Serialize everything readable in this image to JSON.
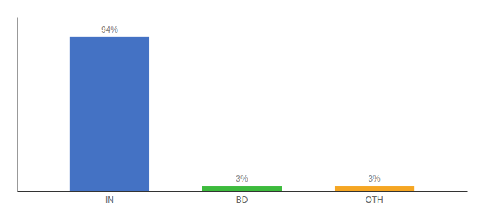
{
  "chart_data": {
    "type": "bar",
    "categories": [
      "IN",
      "BD",
      "OTH"
    ],
    "values": [
      94,
      3,
      3
    ],
    "value_labels": [
      "94%",
      "3%",
      "3%"
    ],
    "colors": [
      "#4472c4",
      "#3dbb3d",
      "#f5a623"
    ],
    "ylim": [
      0,
      106
    ],
    "data_labels": true,
    "tick_labels": "x",
    "grid": false
  }
}
